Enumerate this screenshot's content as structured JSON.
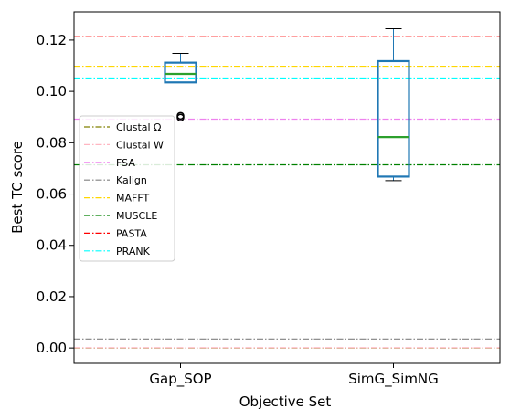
{
  "chart_data": {
    "type": "box",
    "xlabel": "Objective Set",
    "ylabel": "Best TC score",
    "ylim": [
      -0.006,
      0.131
    ],
    "yticks": [
      0.0,
      0.02,
      0.04,
      0.06,
      0.08,
      0.1,
      0.12
    ],
    "ytick_labels": [
      "0.00",
      "0.02",
      "0.04",
      "0.06",
      "0.08",
      "0.10",
      "0.12"
    ],
    "categories": [
      "Gap_SOP",
      "SimG_SimNG"
    ],
    "boxes": [
      {
        "name": "Gap_SOP",
        "whisker_low": 0.1035,
        "q1": 0.1035,
        "median": 0.1068,
        "q3": 0.1112,
        "whisker_high": 0.1148,
        "outliers": [
          0.0905,
          0.0898
        ]
      },
      {
        "name": "SimG_SimNG",
        "whisker_low": 0.0652,
        "q1": 0.0668,
        "median": 0.0822,
        "q3": 0.1118,
        "whisker_high": 0.1244,
        "outliers": []
      }
    ],
    "reference_lines": [
      {
        "name": "Clustal Ω",
        "value": 0.0,
        "color": "#808000"
      },
      {
        "name": "Clustal W",
        "value": 0.0001,
        "color": "#ffb6c1"
      },
      {
        "name": "FSA",
        "value": 0.0892,
        "color": "#ee82ee"
      },
      {
        "name": "Kalign",
        "value": 0.0035,
        "color": "#808080"
      },
      {
        "name": "MAFFT",
        "value": 0.1098,
        "color": "#ffd700"
      },
      {
        "name": "MUSCLE",
        "value": 0.0714,
        "color": "#008000"
      },
      {
        "name": "PASTA",
        "value": 0.1213,
        "color": "#ff0000"
      },
      {
        "name": "PRANK",
        "value": 0.1052,
        "color": "#00ffff"
      }
    ],
    "legend_position": "center-left",
    "grid": false,
    "colors": {
      "box": "#1f77b4",
      "median": "#2ca02c",
      "whisker": "#1f77b4",
      "cap": "#000000"
    }
  }
}
